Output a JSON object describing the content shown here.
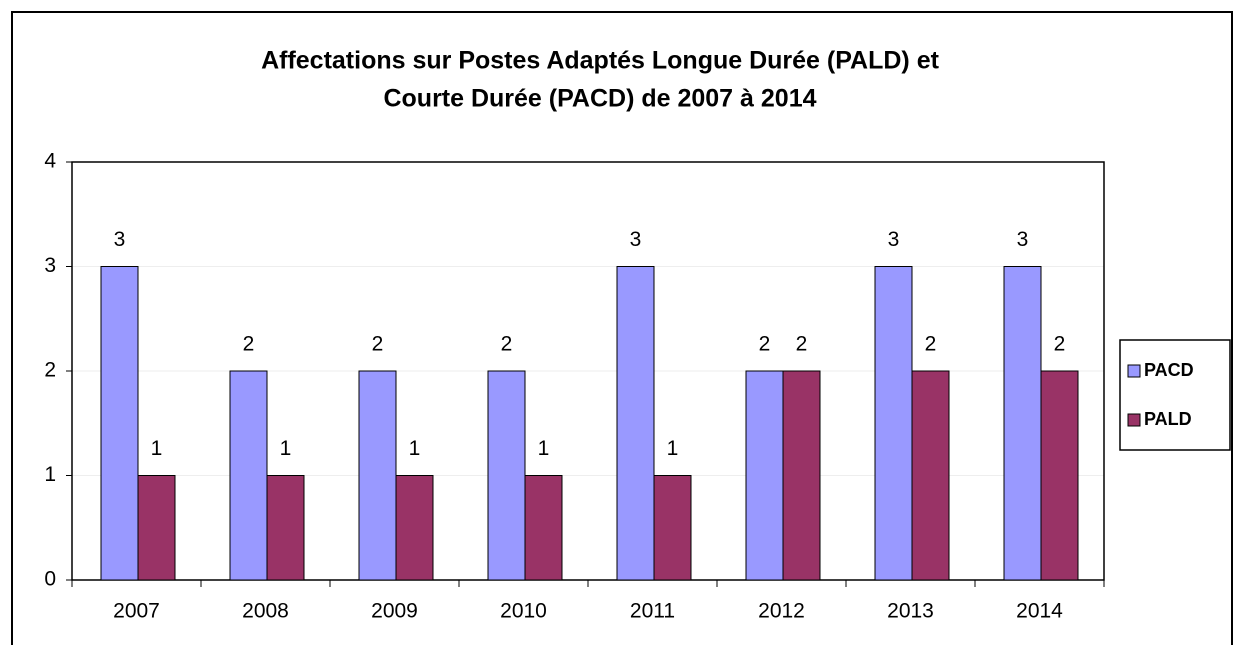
{
  "chart_data": {
    "type": "bar",
    "title": [
      "Affectations sur Postes Adaptés Longue Durée (PALD) et",
      "Courte Durée (PACD) de 2007 à 2014"
    ],
    "categories": [
      "2007",
      "2008",
      "2009",
      "2010",
      "2011",
      "2012",
      "2013",
      "2014"
    ],
    "series": [
      {
        "name": "PACD",
        "color": "#9999ff",
        "values": [
          3,
          2,
          2,
          2,
          3,
          2,
          3,
          3
        ]
      },
      {
        "name": "PALD",
        "color": "#993366",
        "values": [
          1,
          1,
          1,
          1,
          1,
          2,
          2,
          2
        ]
      }
    ],
    "ylim": [
      0,
      4
    ],
    "yticks": [
      0,
      1,
      2,
      3,
      4
    ],
    "grid": true,
    "legend": "right"
  }
}
